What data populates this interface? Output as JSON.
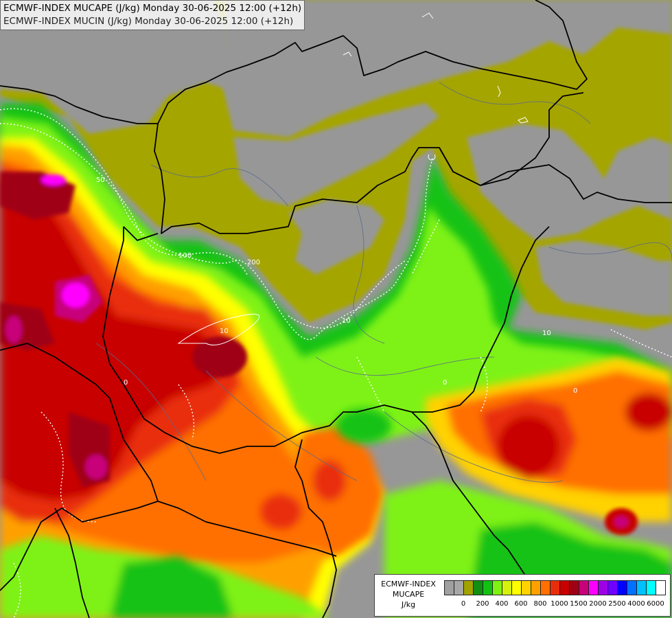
{
  "map": {
    "title_line1": "ECMWF-INDEX MUCAPE (J/kg) Monday 30-06-2025 12:00 (+12h)",
    "title_line2": "ECMWF-INDEX MUCIN (J/kg) Monday 30-06-2025 12:00 (+12h)",
    "contour_labels": [
      "10",
      "50",
      "100",
      "200",
      "10",
      "0",
      "0",
      "10",
      "0"
    ],
    "colors": {
      "background": "#979797",
      "border_lines": "#000000",
      "river_lines": "#5a6a8a",
      "mucin_contours": "#ffffff"
    }
  },
  "legend": {
    "title_line1": "ECMWF-INDEX",
    "title_line2": "MUCAPE",
    "title_line3": "J/kg",
    "colors": [
      "#a0a0a0",
      "#a7a7a7",
      "#a3a300",
      "#128f12",
      "#12c212",
      "#7ef212",
      "#d4f20b",
      "#ffff00",
      "#ffd200",
      "#ffa000",
      "#ff7000",
      "#e82d0a",
      "#c80000",
      "#a00014",
      "#c8007a",
      "#ff00ff",
      "#a000e6",
      "#7000ff",
      "#0000ff",
      "#0070ff",
      "#00c0ff",
      "#00ffff",
      "#ffffff"
    ],
    "ticks": [
      "0",
      "200",
      "400",
      "600",
      "800",
      "1000",
      "1500",
      "2000",
      "2500",
      "4000",
      "6000"
    ]
  }
}
